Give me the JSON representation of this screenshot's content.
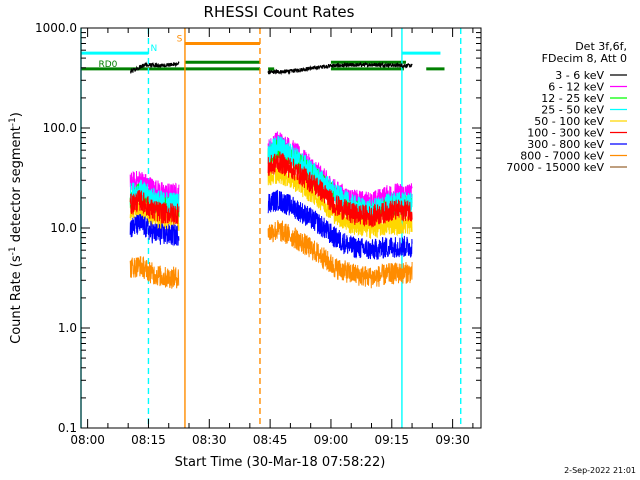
{
  "chart_data": {
    "type": "line",
    "title": "RHESSI Count Rates",
    "xlabel": "Start Time (30-Mar-18 07:58:22)",
    "ylabel_parts": [
      "Count Rate (s",
      "-1",
      " detector segment",
      "-1",
      ")"
    ],
    "yscale": "log",
    "ylim": [
      0.1,
      1000
    ],
    "xlim": [
      "07:58:22",
      "09:37:00"
    ],
    "x_ticks": [
      "08:00",
      "08:15",
      "08:30",
      "08:45",
      "09:00",
      "09:15",
      "09:30"
    ],
    "y_ticks": [
      "1000.0",
      "100.0",
      "10.0",
      "1.0",
      "0.1"
    ],
    "legend_header": [
      "Det 3f,6f,",
      "FDecim 8, Att 0"
    ],
    "legend_placement": "right",
    "series": [
      {
        "name": "3 - 6 keV",
        "color": "#000000",
        "segments": [
          {
            "x": [
              "08:10:30",
              "08:14:00",
              "08:18:00",
              "08:22:30"
            ],
            "y": [
              360,
              430,
              420,
              440
            ]
          },
          {
            "x": [
              "08:44:30",
              "08:50:00",
              "09:00:00",
              "09:10:00",
              "09:20:00"
            ],
            "y": [
              360,
              370,
              420,
              430,
              420
            ]
          }
        ]
      },
      {
        "name": "6 - 12 keV",
        "color": "#ff00ff",
        "segments": [
          {
            "x": [
              "08:10:30",
              "08:13:00",
              "08:16:00",
              "08:19:00",
              "08:22:30"
            ],
            "y": [
              28,
              30,
              25,
              22,
              22
            ]
          },
          {
            "x": [
              "08:44:30",
              "08:47:00",
              "08:51:00",
              "08:57:00",
              "09:01:00",
              "09:05:00",
              "09:10:00",
              "09:15:00",
              "09:20:00"
            ],
            "y": [
              60,
              75,
              58,
              35,
              24,
              19,
              18,
              22,
              22
            ]
          }
        ]
      },
      {
        "name": "12 - 25 keV",
        "color": "#00ff00",
        "segments": [
          {
            "x": [
              "08:10:30",
              "08:13:00",
              "08:16:00",
              "08:19:00",
              "08:22:30"
            ],
            "y": [
              20,
              22,
              18,
              16,
              16
            ]
          },
          {
            "x": [
              "08:44:30",
              "08:47:00",
              "08:51:00",
              "08:57:00",
              "09:01:00",
              "09:05:00",
              "09:10:00",
              "09:15:00",
              "09:20:00"
            ],
            "y": [
              50,
              62,
              48,
              30,
              20,
              15,
              14,
              16,
              17
            ]
          }
        ]
      },
      {
        "name": "25 - 50 keV",
        "color": "#00ffff",
        "segments": [
          {
            "x": [
              "08:10:30",
              "08:13:00",
              "08:16:00",
              "08:19:00",
              "08:22:30"
            ],
            "y": [
              22,
              24,
              20,
              18,
              18
            ]
          },
          {
            "x": [
              "08:44:30",
              "08:47:00",
              "08:51:00",
              "08:57:00",
              "09:01:00",
              "09:05:00",
              "09:10:00",
              "09:15:00",
              "09:20:00"
            ],
            "y": [
              55,
              68,
              52,
              32,
              22,
              17,
              15,
              18,
              18
            ]
          }
        ]
      },
      {
        "name": "50 - 100 keV",
        "color": "#ffd700",
        "segments": [
          {
            "x": [
              "08:10:30",
              "08:13:00",
              "08:16:00",
              "08:19:00",
              "08:22:30"
            ],
            "y": [
              15,
              16,
              13,
              12,
              12
            ]
          },
          {
            "x": [
              "08:44:30",
              "08:47:00",
              "08:51:00",
              "08:57:00",
              "09:01:00",
              "09:05:00",
              "09:10:00",
              "09:15:00",
              "09:20:00"
            ],
            "y": [
              33,
              36,
              30,
              20,
              14,
              11,
              10,
              11,
              11
            ]
          }
        ]
      },
      {
        "name": "100 - 300 keV",
        "color": "#ff0000",
        "segments": [
          {
            "x": [
              "08:10:30",
              "08:13:00",
              "08:16:00",
              "08:19:00",
              "08:22:30"
            ],
            "y": [
              17,
              19,
              15,
              14,
              14
            ]
          },
          {
            "x": [
              "08:44:30",
              "08:47:00",
              "08:51:00",
              "08:57:00",
              "09:01:00",
              "09:05:00",
              "09:10:00",
              "09:15:00",
              "09:20:00"
            ],
            "y": [
              40,
              46,
              38,
              25,
              17,
              14,
              13,
              15,
              15
            ]
          }
        ]
      },
      {
        "name": "300 - 800 keV",
        "color": "#0000ff",
        "segments": [
          {
            "x": [
              "08:10:30",
              "08:13:00",
              "08:16:00",
              "08:19:00",
              "08:22:30"
            ],
            "y": [
              10,
              11,
              9,
              8.5,
              8.5
            ]
          },
          {
            "x": [
              "08:44:30",
              "08:47:00",
              "08:51:00",
              "08:57:00",
              "09:01:00",
              "09:05:00",
              "09:10:00",
              "09:15:00",
              "09:20:00"
            ],
            "y": [
              18,
              19,
              16,
              11,
              8,
              6.5,
              6,
              6.5,
              6.5
            ]
          }
        ]
      },
      {
        "name": "800 - 7000 keV",
        "color": "#ff8c00",
        "segments": [
          {
            "x": [
              "08:10:30",
              "08:13:00",
              "08:16:00",
              "08:19:00",
              "08:22:30"
            ],
            "y": [
              4,
              4.2,
              3.5,
              3.2,
              3.2
            ]
          },
          {
            "x": [
              "08:44:30",
              "08:47:00",
              "08:51:00",
              "08:57:00",
              "09:01:00",
              "09:05:00",
              "09:10:00",
              "09:15:00",
              "09:20:00"
            ],
            "y": [
              9,
              9.5,
              8,
              5.5,
              4,
              3.5,
              3.2,
              3.5,
              3.6
            ]
          }
        ]
      },
      {
        "name": "7000 - 15000 keV",
        "color": "#996633",
        "segments": []
      }
    ],
    "flag_bars": [
      {
        "label": "RD0",
        "color": "#008000",
        "y": 390,
        "label_time": "08:05:00",
        "ranges": [
          [
            "07:58:22",
            "08:42:30"
          ],
          [
            "08:44:30",
            "08:46:00"
          ],
          [
            "09:00:00",
            "09:18:00"
          ],
          [
            "09:23:30",
            "09:28:00"
          ]
        ]
      },
      {
        "label": "",
        "color": "#008000",
        "y": 455,
        "ranges": [
          [
            "08:24:00",
            "08:42:30"
          ],
          [
            "09:00:00",
            "09:18:30"
          ]
        ]
      },
      {
        "label": "N",
        "color": "#00ffff",
        "y": 560,
        "label_time": "08:16:20",
        "ranges": [
          [
            "07:58:22",
            "08:15:00"
          ],
          [
            "09:17:30",
            "09:27:00"
          ]
        ]
      },
      {
        "label": "S",
        "color": "#ff8c00",
        "y": 700,
        "label_time": "08:22:40",
        "ranges": [
          [
            "08:24:00",
            "08:42:30"
          ]
        ]
      }
    ],
    "vlines": [
      {
        "time": "07:58:22",
        "color": "#00ffff",
        "style": "solid"
      },
      {
        "time": "08:15:00",
        "color": "#00ffff",
        "style": "dashed"
      },
      {
        "time": "08:24:00",
        "color": "#ff8c00",
        "style": "solid"
      },
      {
        "time": "08:42:30",
        "color": "#ff8c00",
        "style": "dashed"
      },
      {
        "time": "09:17:30",
        "color": "#00ffff",
        "style": "solid"
      },
      {
        "time": "09:32:00",
        "color": "#00ffff",
        "style": "dashed"
      }
    ],
    "footer": "2-Sep-2022 21:01"
  }
}
